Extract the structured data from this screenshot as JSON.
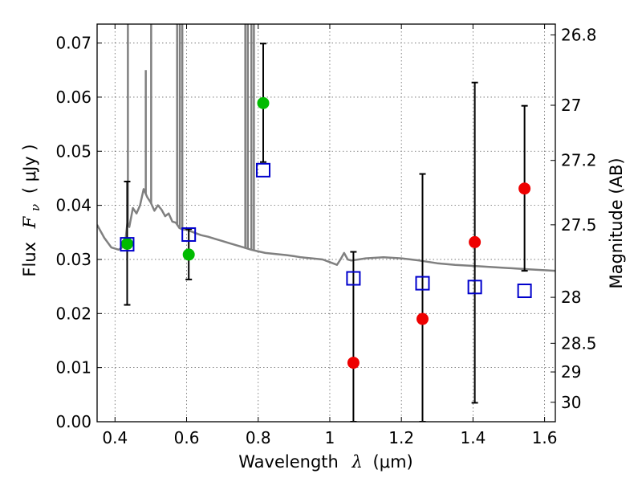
{
  "chart_data": {
    "type": "scatter",
    "xlabel": "Wavelength",
    "xlabel_symbol": "λ",
    "xlabel_unit": "(μm)",
    "ylabel": "Flux",
    "ylabel_symbol": "F",
    "ylabel_subscript": "ν",
    "ylabel_unit": "( μJy )",
    "y2label": "Magnitude (AB)",
    "xlim": [
      0.35,
      1.63
    ],
    "ylim": [
      0.0,
      0.0735
    ],
    "grid": true,
    "x_ticks": [
      {
        "value": 0.4,
        "label": "0.4"
      },
      {
        "value": 0.6,
        "label": "0.6"
      },
      {
        "value": 0.8,
        "label": "0.8"
      },
      {
        "value": 1.0,
        "label": "1"
      },
      {
        "value": 1.2,
        "label": "1.2"
      },
      {
        "value": 1.4,
        "label": "1.4"
      },
      {
        "value": 1.6,
        "label": "1.6"
      }
    ],
    "y_ticks": [
      {
        "value": 0.0,
        "label": "0.00"
      },
      {
        "value": 0.01,
        "label": "0.01"
      },
      {
        "value": 0.02,
        "label": "0.02"
      },
      {
        "value": 0.03,
        "label": "0.03"
      },
      {
        "value": 0.04,
        "label": "0.04"
      },
      {
        "value": 0.05,
        "label": "0.05"
      },
      {
        "value": 0.06,
        "label": "0.06"
      },
      {
        "value": 0.07,
        "label": "0.07"
      }
    ],
    "y2_ticks": [
      {
        "flux": 0.0715,
        "label": "26.8"
      },
      {
        "flux": 0.0585,
        "label": "27"
      },
      {
        "flux": 0.0483,
        "label": "27.2"
      },
      {
        "flux": 0.0364,
        "label": "27.5"
      },
      {
        "flux": 0.023,
        "label": "28"
      },
      {
        "flux": 0.0145,
        "label": "28.5"
      },
      {
        "flux": 0.0092,
        "label": "29"
      },
      {
        "flux": 0.0036,
        "label": "30"
      }
    ],
    "series": [
      {
        "marker": "filled-circle",
        "color": "#00bb00",
        "points": [
          {
            "x": 0.434,
            "y": 0.0329,
            "err_low": 0.0216,
            "err_high": 0.0444
          },
          {
            "x": 0.606,
            "y": 0.0309,
            "err_low": 0.0263,
            "err_high": 0.0356
          },
          {
            "x": 0.814,
            "y": 0.0589,
            "err_low": 0.048,
            "err_high": 0.0699
          }
        ]
      },
      {
        "marker": "filled-circle",
        "color": "#ee0000",
        "points": [
          {
            "x": 1.066,
            "y": 0.0109,
            "err_low": 0.0,
            "err_high": 0.0314
          },
          {
            "x": 1.259,
            "y": 0.019,
            "err_low": 0.0,
            "err_high": 0.0458
          },
          {
            "x": 1.405,
            "y": 0.0332,
            "err_low": 0.0035,
            "err_high": 0.0627
          },
          {
            "x": 1.544,
            "y": 0.0431,
            "err_low": 0.0279,
            "err_high": 0.0584
          }
        ]
      },
      {
        "marker": "open-square",
        "color": "#0000cc",
        "points": [
          {
            "x": 0.434,
            "y": 0.0328
          },
          {
            "x": 0.606,
            "y": 0.0346
          },
          {
            "x": 0.814,
            "y": 0.0465
          },
          {
            "x": 1.066,
            "y": 0.0265
          },
          {
            "x": 1.259,
            "y": 0.0256
          },
          {
            "x": 1.405,
            "y": 0.0249
          },
          {
            "x": 1.544,
            "y": 0.0242
          }
        ]
      }
    ],
    "model_spectrum": {
      "color": "#808080",
      "x": [
        0.35,
        0.37,
        0.39,
        0.41,
        0.42,
        0.43,
        0.435,
        0.44,
        0.45,
        0.46,
        0.47,
        0.48,
        0.49,
        0.5,
        0.51,
        0.52,
        0.53,
        0.54,
        0.55,
        0.56,
        0.57,
        0.58,
        0.59,
        0.6,
        0.62,
        0.64,
        0.66,
        0.68,
        0.7,
        0.72,
        0.74,
        0.76,
        0.78,
        0.8,
        0.82,
        0.85,
        0.88,
        0.9,
        0.92,
        0.95,
        0.98,
        1.0,
        1.02,
        1.03,
        1.04,
        1.05,
        1.06,
        1.08,
        1.1,
        1.15,
        1.2,
        1.25,
        1.3,
        1.35,
        1.4,
        1.45,
        1.5,
        1.55,
        1.6,
        1.63
      ],
      "y": [
        0.0364,
        0.034,
        0.0322,
        0.0318,
        0.0322,
        0.034,
        0.037,
        0.036,
        0.0395,
        0.0385,
        0.04,
        0.043,
        0.0415,
        0.0405,
        0.039,
        0.04,
        0.0392,
        0.038,
        0.0385,
        0.037,
        0.0368,
        0.0358,
        0.0355,
        0.0355,
        0.035,
        0.0345,
        0.0342,
        0.0338,
        0.0334,
        0.033,
        0.0326,
        0.0322,
        0.0318,
        0.0315,
        0.0312,
        0.031,
        0.0308,
        0.0306,
        0.0304,
        0.0302,
        0.03,
        0.0295,
        0.029,
        0.03,
        0.0312,
        0.03,
        0.0298,
        0.03,
        0.0302,
        0.0304,
        0.0302,
        0.0298,
        0.0293,
        0.029,
        0.0288,
        0.0286,
        0.0284,
        0.0282,
        0.028,
        0.0279
      ],
      "emission_lines": [
        {
          "x": 0.436,
          "peak": 0.0735
        },
        {
          "x": 0.486,
          "peak": 0.065
        },
        {
          "x": 0.501,
          "peak": 0.0735
        },
        {
          "x": 0.5735,
          "peak": 0.0735
        },
        {
          "x": 0.581,
          "peak": 0.0735
        },
        {
          "x": 0.588,
          "peak": 0.0735
        },
        {
          "x": 0.764,
          "peak": 0.0735
        },
        {
          "x": 0.771,
          "peak": 0.0735
        },
        {
          "x": 0.781,
          "peak": 0.0735
        },
        {
          "x": 0.788,
          "peak": 0.0735
        }
      ]
    }
  }
}
